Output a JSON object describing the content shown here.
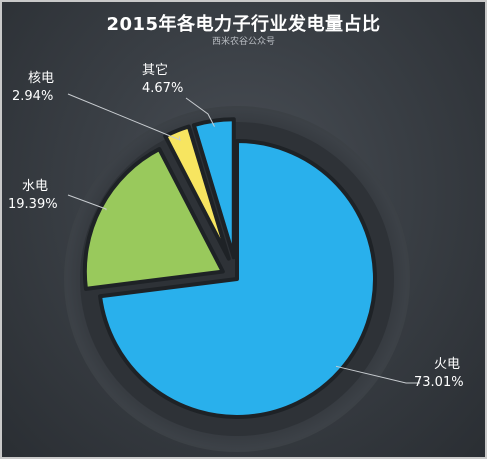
{
  "chart_data": {
    "type": "pie",
    "title": "2015年各电力子行业发电量占比",
    "subtitle": "西米农谷公众号",
    "slices": [
      {
        "name": "火电",
        "value": 73.01,
        "label": "73.01%",
        "color": "#29b0ec"
      },
      {
        "name": "水电",
        "value": 19.39,
        "label": "19.39%",
        "color": "#99c95c"
      },
      {
        "name": "核电",
        "value": 2.94,
        "label": "2.94%",
        "color": "#f7e560"
      },
      {
        "name": "其它",
        "value": 4.67,
        "label": "4.67%",
        "color": "#29b0ec"
      }
    ]
  }
}
